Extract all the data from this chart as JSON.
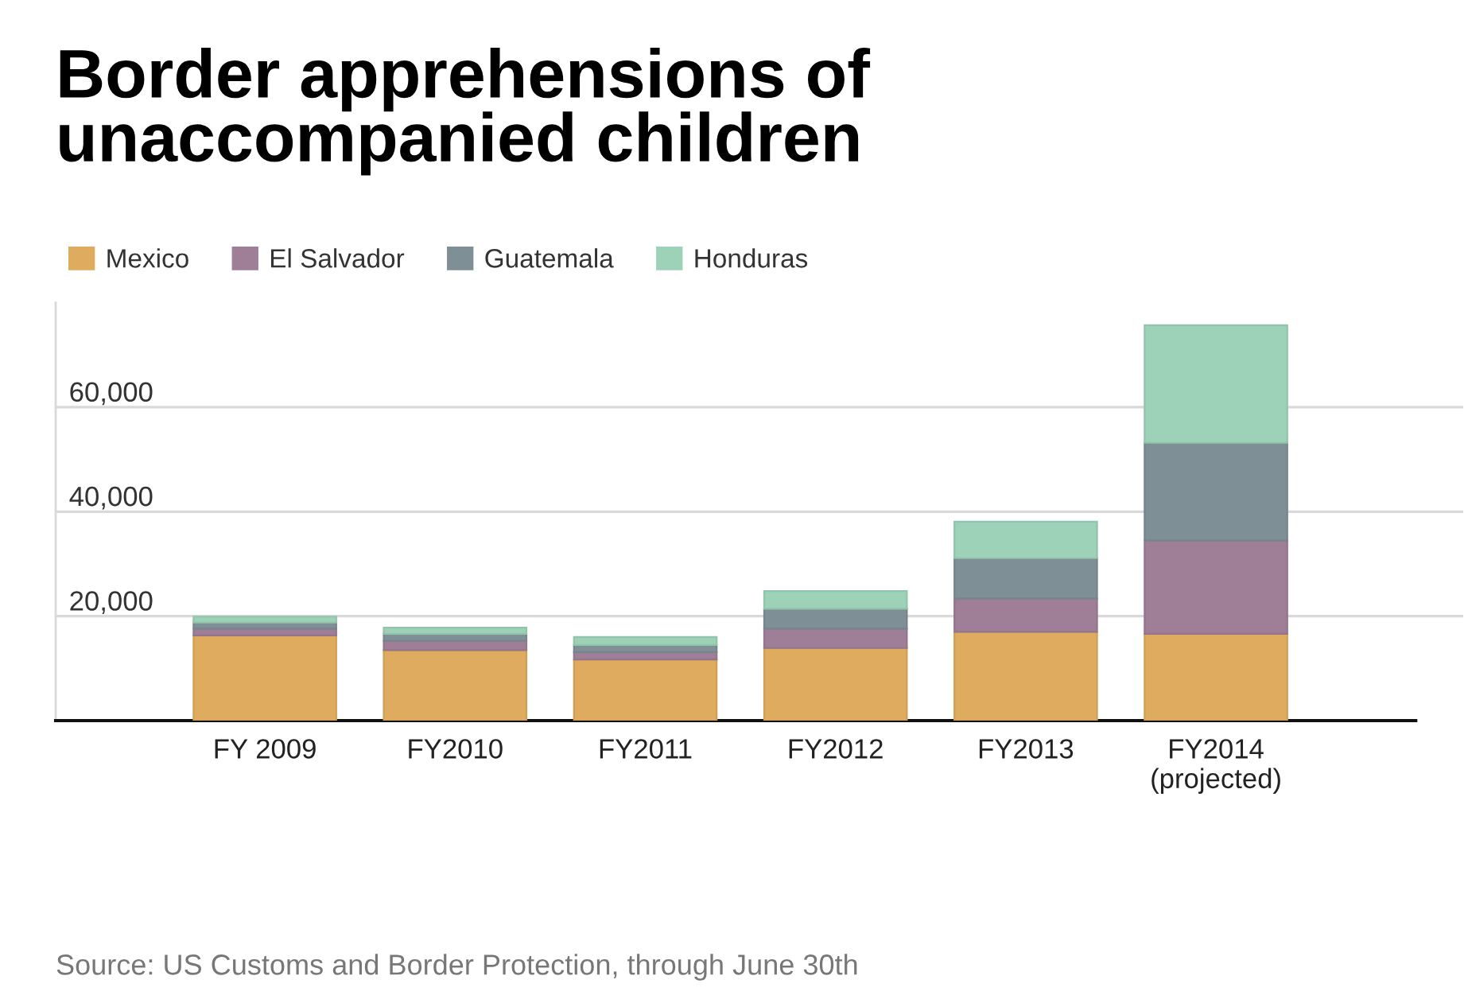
{
  "chart_data": {
    "type": "bar",
    "title": "Border apprehensions of\nunaccompanied children",
    "stacked": true,
    "categories": [
      "FY 2009",
      "FY2010",
      "FY2011",
      "FY2012",
      "FY2013",
      "FY2014\n(projected)"
    ],
    "series": [
      {
        "name": "Mexico",
        "color": "#dfab5e",
        "values": [
          16300,
          13500,
          11700,
          13900,
          17000,
          16600
        ]
      },
      {
        "name": "El Salvador",
        "color": "#9f7e98",
        "values": [
          1300,
          1800,
          1400,
          3700,
          6400,
          17900
        ]
      },
      {
        "name": "Guatemala",
        "color": "#7f8f96",
        "values": [
          1200,
          1300,
          1400,
          3800,
          7700,
          18700
        ]
      },
      {
        "name": "Honduras",
        "color": "#9dd2b8",
        "values": [
          1100,
          1200,
          1500,
          3400,
          7000,
          22500
        ]
      }
    ],
    "ylim": [
      0,
      80000
    ],
    "yticks": [
      {
        "value": 20000,
        "label": "20,000"
      },
      {
        "value": 40000,
        "label": "40,000"
      },
      {
        "value": 60000,
        "label": "60,000"
      }
    ],
    "grid": "y",
    "legend": "top left",
    "annotations": [
      "Source: US Customs and Border Protection, through June 30th"
    ]
  }
}
